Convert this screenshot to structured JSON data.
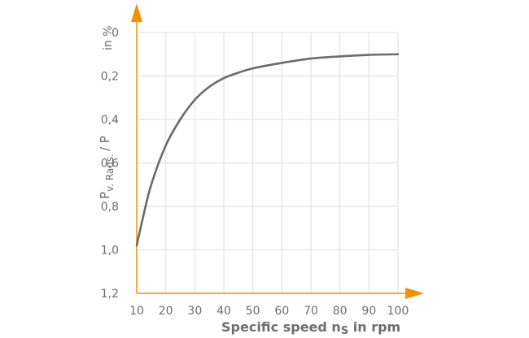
{
  "chart_data": {
    "type": "line",
    "title": "",
    "xlabel": "Specific speed nₛ in rpm",
    "xlabel_parts": {
      "pre": "Specific speed ",
      "var": "n",
      "sub": "S",
      "post": " in rpm"
    },
    "ylabel": "P v. Rads. / P",
    "ylabel_parts": {
      "main": "P",
      "sub": "v. Rads.",
      "post": "/ P"
    },
    "yunit": "in %",
    "x_ticks": [
      "10",
      "20",
      "30",
      "40",
      "50",
      "60",
      "70",
      "80",
      "90",
      "100"
    ],
    "y_ticks": [
      "0",
      "0,2",
      "0,4",
      "0,6",
      "0,8",
      "1,0",
      "1,2"
    ],
    "xlim": [
      10,
      100
    ],
    "ylim": [
      0,
      1.2
    ],
    "y_inverted": true,
    "grid": true,
    "series": [
      {
        "name": "P v. Rads. / P",
        "x": [
          10,
          12,
          15,
          20,
          25,
          30,
          35,
          40,
          45,
          50,
          60,
          70,
          80,
          90,
          100
        ],
        "values": [
          0.98,
          0.86,
          0.7,
          0.52,
          0.4,
          0.31,
          0.25,
          0.21,
          0.185,
          0.165,
          0.14,
          0.12,
          0.11,
          0.103,
          0.1
        ]
      }
    ],
    "colors": {
      "axis": "#f39200",
      "curve": "#6b6b6b",
      "grid": "#e2e2e2",
      "text": "#6d6d6d"
    }
  }
}
